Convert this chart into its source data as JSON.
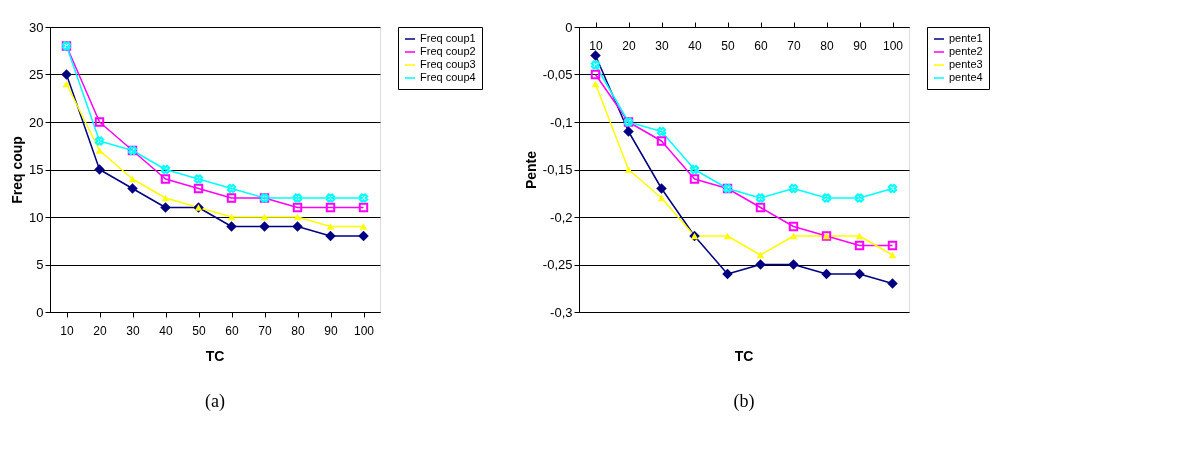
{
  "chart_data": [
    {
      "type": "line",
      "xlabel": "TC",
      "ylabel": "Freq coup",
      "categories": [
        "10",
        "20",
        "30",
        "40",
        "50",
        "60",
        "70",
        "80",
        "90",
        "100"
      ],
      "ylim": [
        0,
        30
      ],
      "yticks": [
        0,
        5,
        10,
        15,
        20,
        25,
        30
      ],
      "grid": "y",
      "legend": "right",
      "annotations": [
        "(a)"
      ],
      "series": [
        {
          "name": "Freq coup1",
          "color": "#000080",
          "marker": "diamond",
          "values": [
            25,
            15,
            13,
            11,
            11,
            9,
            9,
            9,
            8,
            8
          ]
        },
        {
          "name": "Freq coup2",
          "color": "#ff00ff",
          "marker": "square",
          "values": [
            28,
            20,
            17,
            14,
            13,
            12,
            12,
            11,
            11,
            11
          ]
        },
        {
          "name": "Freq coup3",
          "color": "#ffff00",
          "marker": "triangle",
          "values": [
            24,
            17,
            14,
            12,
            11,
            10,
            10,
            10,
            9,
            9
          ]
        },
        {
          "name": "Freq coup4",
          "color": "#00ffff",
          "marker": "cross",
          "values": [
            28,
            18,
            17,
            15,
            14,
            13,
            12,
            12,
            12,
            12
          ]
        }
      ]
    },
    {
      "type": "line",
      "xlabel": "TC",
      "ylabel": "Pente",
      "categories": [
        "10",
        "20",
        "30",
        "40",
        "50",
        "60",
        "70",
        "80",
        "90",
        "100"
      ],
      "ylim": [
        -0.3,
        0
      ],
      "yticks": [
        {
          "value": -0.3,
          "label": "-0,3"
        },
        {
          "value": -0.25,
          "label": "-0,25"
        },
        {
          "value": -0.2,
          "label": "-0,2"
        },
        {
          "value": -0.15,
          "label": "-0,15"
        },
        {
          "value": -0.1,
          "label": "-0,1"
        },
        {
          "value": -0.05,
          "label": "-0,05"
        },
        0
      ],
      "grid": "y",
      "legend": "right",
      "annotations": [
        "(b)"
      ],
      "series": [
        {
          "name": "pente1",
          "color": "#000080",
          "marker": "diamond",
          "values": [
            -0.03,
            -0.11,
            -0.17,
            -0.22,
            -0.26,
            -0.25,
            -0.25,
            -0.26,
            -0.26,
            -0.27
          ]
        },
        {
          "name": "pente2",
          "color": "#ff00ff",
          "marker": "square",
          "values": [
            -0.05,
            -0.1,
            -0.12,
            -0.16,
            -0.17,
            -0.19,
            -0.21,
            -0.22,
            -0.23,
            -0.23
          ]
        },
        {
          "name": "pente3",
          "color": "#ffff00",
          "marker": "triangle",
          "values": [
            -0.06,
            -0.15,
            -0.18,
            -0.22,
            -0.22,
            -0.24,
            -0.22,
            -0.22,
            -0.22,
            -0.24
          ]
        },
        {
          "name": "pente4",
          "color": "#00ffff",
          "marker": "cross",
          "values": [
            -0.04,
            -0.1,
            -0.11,
            -0.15,
            -0.17,
            -0.18,
            -0.17,
            -0.18,
            -0.18,
            -0.17
          ]
        }
      ]
    }
  ]
}
